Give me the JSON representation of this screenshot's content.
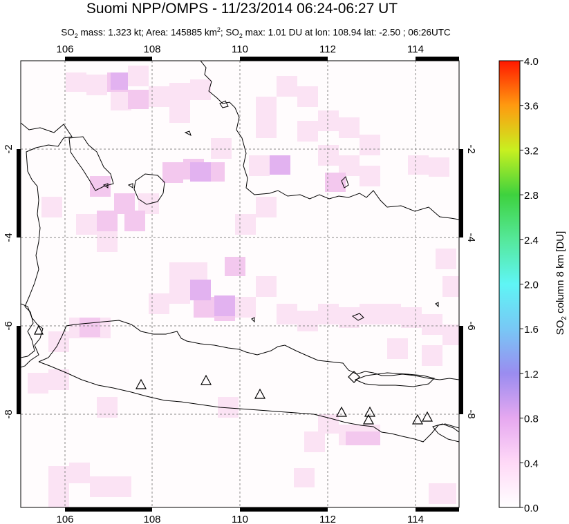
{
  "header": {
    "title": "Suomi NPP/OMPS - 11/23/2014 06:24-06:27 UT",
    "so2_mass_label": "SO",
    "so2_mass_text": " mass: 1.323 kt; Area: 145885 km",
    "so2_max_label": "; SO",
    "so2_max_text": " max: 1.01 DU at lon: 108.94 lat: -2.50 ; 06:26UTC"
  },
  "map": {
    "lon_ticks": [
      "106",
      "108",
      "110",
      "112",
      "114"
    ],
    "lat_ticks_left": [
      "-2",
      "-4",
      "-6",
      "-8"
    ],
    "lat_ticks_right": [
      "-2",
      "-4",
      "-6",
      "-8"
    ],
    "lon_range": [
      105.0,
      115.0
    ],
    "lat_range": [
      -10.0,
      -0.3
    ],
    "volcano_marker": "triangle-icon",
    "volcanoes": [
      {
        "lon": 105.42,
        "lat": -6.1
      },
      {
        "lon": 107.73,
        "lat": -7.25
      },
      {
        "lon": 109.2,
        "lat": -7.2
      },
      {
        "lon": 110.44,
        "lat": -7.54
      },
      {
        "lon": 112.3,
        "lat": -7.92
      },
      {
        "lon": 112.92,
        "lat": -7.93
      },
      {
        "lon": 112.92,
        "lat": -8.1
      },
      {
        "lon": 114.04,
        "lat": -8.1
      },
      {
        "lon": 114.24,
        "lat": -8.05
      }
    ]
  },
  "colorbar": {
    "ticks": [
      "4.0",
      "3.6",
      "3.2",
      "2.8",
      "2.4",
      "2.0",
      "1.6",
      "1.2",
      "0.8",
      "0.4",
      "0.0"
    ],
    "label_main": "SO",
    "label_sub": "2",
    "label_rest": " column 8 km [DU]",
    "range": [
      0.0,
      4.0
    ]
  }
}
